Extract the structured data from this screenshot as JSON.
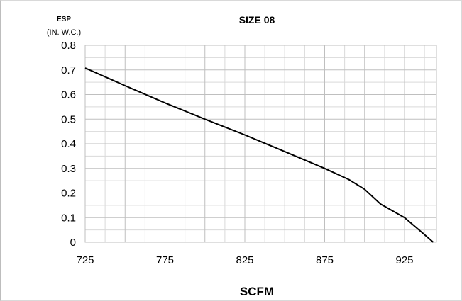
{
  "chart_data": {
    "type": "line",
    "title": "SIZE 08",
    "ylabel_line1": "ESP",
    "ylabel_line2": "(IN. W.C.)",
    "xlabel": "SCFM",
    "xlim": [
      725,
      945
    ],
    "ylim": [
      0,
      0.8
    ],
    "x_ticks": [
      "725",
      "775",
      "825",
      "875",
      "925"
    ],
    "x_tick_values": [
      725,
      775,
      825,
      875,
      925
    ],
    "y_ticks": [
      "0",
      "0.1",
      "0.2",
      "0.3",
      "0.4",
      "0.5",
      "0.6",
      "0.7",
      "0.8"
    ],
    "y_tick_values": [
      0,
      0.1,
      0.2,
      0.3,
      0.4,
      0.5,
      0.6,
      0.7,
      0.8
    ],
    "grid": true,
    "colors": {
      "line": "#000000",
      "grid_major": "#bfbfbf",
      "grid_minor": "#d9d9d9"
    },
    "series": [
      {
        "x": [
          725,
          750,
          775,
          800,
          825,
          850,
          875,
          890,
          900,
          910,
          925,
          935,
          943
        ],
        "y": [
          0.708,
          0.636,
          0.566,
          0.5,
          0.436,
          0.368,
          0.3,
          0.255,
          0.215,
          0.155,
          0.1,
          0.045,
          0.0
        ]
      }
    ]
  }
}
